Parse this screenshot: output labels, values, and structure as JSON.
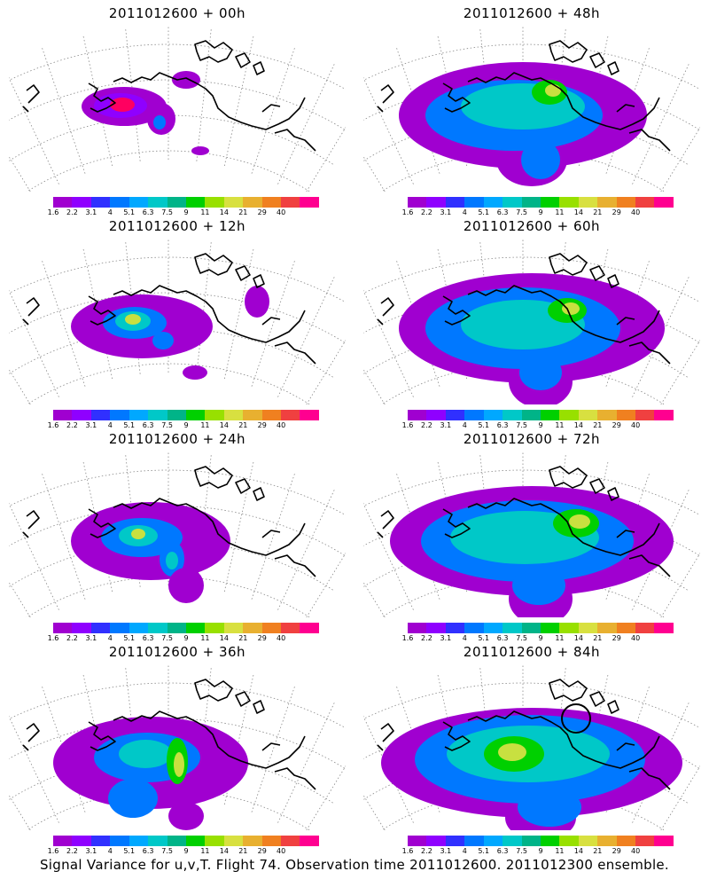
{
  "panels": [
    {
      "title": "2011012600 + 00h",
      "lead": "00h"
    },
    {
      "title": "2011012600 + 48h",
      "lead": "48h"
    },
    {
      "title": "2011012600 + 12h",
      "lead": "12h"
    },
    {
      "title": "2011012600 + 60h",
      "lead": "60h"
    },
    {
      "title": "2011012600 + 24h",
      "lead": "24h"
    },
    {
      "title": "2011012600 + 72h",
      "lead": "72h"
    },
    {
      "title": "2011012600 + 36h",
      "lead": "36h"
    },
    {
      "title": "2011012600 + 84h",
      "lead": "84h"
    }
  ],
  "colorbar": {
    "labels": [
      "1.6",
      "2.2",
      "3.1",
      "4",
      "5.1",
      "6.3",
      "7.5",
      "9",
      "11",
      "14",
      "21",
      "29",
      "40"
    ],
    "colors": [
      "#a000d0",
      "#8f00ff",
      "#3030ff",
      "#0078ff",
      "#00a8ff",
      "#00c8c8",
      "#00b488",
      "#00d000",
      "#98e000",
      "#d8e040",
      "#e8b030",
      "#f08020",
      "#f04040",
      "#ff0090"
    ]
  },
  "caption": "Signal Variance for u,v,T. Flight 74. Observation time 2011012600. 2011012300 ensemble.",
  "map_colors": {
    "purple": "#a000d0",
    "violet": "#8f00ff",
    "blue": "#0078ff",
    "cyan": "#00c8c8",
    "green": "#00d000",
    "yellowgreen": "#c8e040",
    "red": "#ff0060"
  }
}
